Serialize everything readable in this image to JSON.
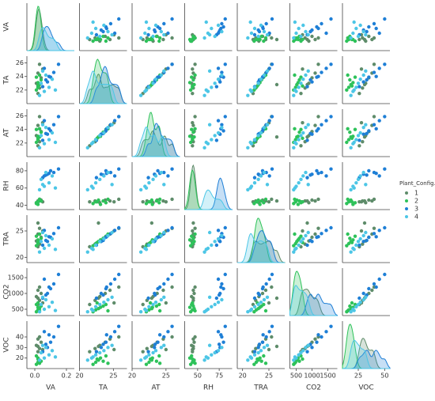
{
  "chart_data": {
    "type": "pairplot",
    "variables": [
      "VA",
      "TA",
      "AT",
      "RH",
      "TRA",
      "CO2",
      "VOC"
    ],
    "legend_title": "Plant_Config.",
    "legend": "right",
    "axes": {
      "VA": {
        "lim": [
          -0.05,
          0.25
        ],
        "xticks": [
          {
            "value": 0,
            "label": "0.0"
          },
          {
            "value": 0.2,
            "label": "0.2"
          }
        ],
        "yticks": []
      },
      "TA": {
        "lim": [
          20,
          27
        ],
        "xticks": [
          20,
          25
        ],
        "yticks": [
          22,
          24,
          26
        ]
      },
      "AT": {
        "lim": [
          20,
          27
        ],
        "xticks": [
          20,
          25
        ],
        "yticks": [
          22,
          24,
          26
        ]
      },
      "RH": {
        "lim": [
          35,
          90
        ],
        "xticks": [
          50,
          75
        ],
        "yticks": [
          40,
          60,
          80
        ]
      },
      "TRA": {
        "lim": [
          19,
          28
        ],
        "xticks": [
          20,
          25
        ],
        "yticks": [
          20,
          25
        ]
      },
      "CO2": {
        "lim": [
          300,
          1800
        ],
        "xticks": [
          500,
          1000,
          1500
        ],
        "yticks": [
          500,
          1000,
          1500
        ]
      },
      "VOC": {
        "lim": [
          10,
          55
        ],
        "xticks": [
          25,
          50
        ],
        "yticks": [
          20,
          30,
          40
        ]
      }
    },
    "series": [
      {
        "name": "1",
        "color": "#5e8c6a",
        "values": {
          "VA": [
            0.02,
            0.03,
            0.01,
            0.04,
            0.02,
            0.05,
            0.03,
            0.02
          ],
          "TA": [
            21.5,
            22.3,
            23.0,
            23.8,
            24.5,
            25.1,
            25.8,
            22.8
          ],
          "AT": [
            21.6,
            22.2,
            23.1,
            23.7,
            24.6,
            25.0,
            25.9,
            22.9
          ],
          "RH": [
            44,
            45,
            43,
            46,
            45,
            44,
            47,
            45
          ],
          "TRA": [
            22.0,
            22.5,
            23.1,
            23.8,
            24.4,
            25.0,
            25.5,
            26.5
          ],
          "CO2": [
            650,
            780,
            900,
            1000,
            1100,
            700,
            1200,
            850
          ],
          "VOC": [
            26,
            29,
            32,
            35,
            38,
            28,
            40,
            31
          ]
        }
      },
      {
        "name": "2",
        "color": "#2ec25a",
        "values": {
          "VA": [
            0.01,
            0.02,
            0.03,
            0.02,
            0.04,
            0.01,
            0.03,
            0.02
          ],
          "TA": [
            22.0,
            22.4,
            22.8,
            23.1,
            23.5,
            23.9,
            24.2,
            22.6
          ],
          "AT": [
            22.1,
            22.5,
            22.9,
            23.0,
            23.6,
            24.0,
            24.1,
            22.7
          ],
          "RH": [
            42,
            44,
            46,
            41,
            45,
            43,
            47,
            44
          ],
          "TRA": [
            22.2,
            22.6,
            23.0,
            23.3,
            23.6,
            24.0,
            24.4,
            22.8
          ],
          "CO2": [
            420,
            480,
            520,
            560,
            600,
            650,
            450,
            700
          ],
          "VOC": [
            14,
            16,
            18,
            20,
            17,
            22,
            15,
            19
          ]
        }
      },
      {
        "name": "3",
        "color": "#1e7fd6",
        "values": {
          "VA": [
            0.05,
            0.08,
            0.1,
            0.12,
            0.06,
            0.15,
            0.09,
            0.07
          ],
          "TA": [
            22.5,
            23.2,
            23.9,
            24.6,
            25.2,
            25.8,
            24.0,
            23.5
          ],
          "AT": [
            22.4,
            23.3,
            23.8,
            24.7,
            25.3,
            25.9,
            24.1,
            23.4
          ],
          "RH": [
            72,
            76,
            80,
            78,
            74,
            82,
            77,
            75
          ],
          "TRA": [
            22.3,
            23.0,
            23.8,
            24.5,
            25.1,
            25.6,
            23.9,
            23.2
          ],
          "CO2": [
            850,
            1000,
            1150,
            1300,
            1450,
            1600,
            1200,
            950
          ],
          "VOC": [
            26,
            30,
            35,
            40,
            45,
            50,
            42,
            33
          ]
        }
      },
      {
        "name": "4",
        "color": "#4cc6e6",
        "values": {
          "VA": [
            0.03,
            0.06,
            0.09,
            0.04,
            0.11,
            0.07,
            0.05,
            0.13
          ],
          "TA": [
            21.2,
            21.8,
            22.4,
            23.0,
            23.6,
            24.2,
            24.8,
            22.0
          ],
          "AT": [
            21.3,
            21.9,
            22.5,
            23.1,
            23.5,
            24.3,
            24.7,
            22.1
          ],
          "RH": [
            58,
            62,
            66,
            70,
            74,
            78,
            64,
            60
          ],
          "TRA": [
            21.0,
            21.7,
            22.3,
            23.0,
            23.5,
            24.1,
            24.7,
            21.5
          ],
          "CO2": [
            420,
            500,
            580,
            650,
            720,
            800,
            880,
            460
          ],
          "VOC": [
            18,
            20,
            23,
            25,
            27,
            30,
            32,
            21
          ]
        }
      }
    ]
  }
}
